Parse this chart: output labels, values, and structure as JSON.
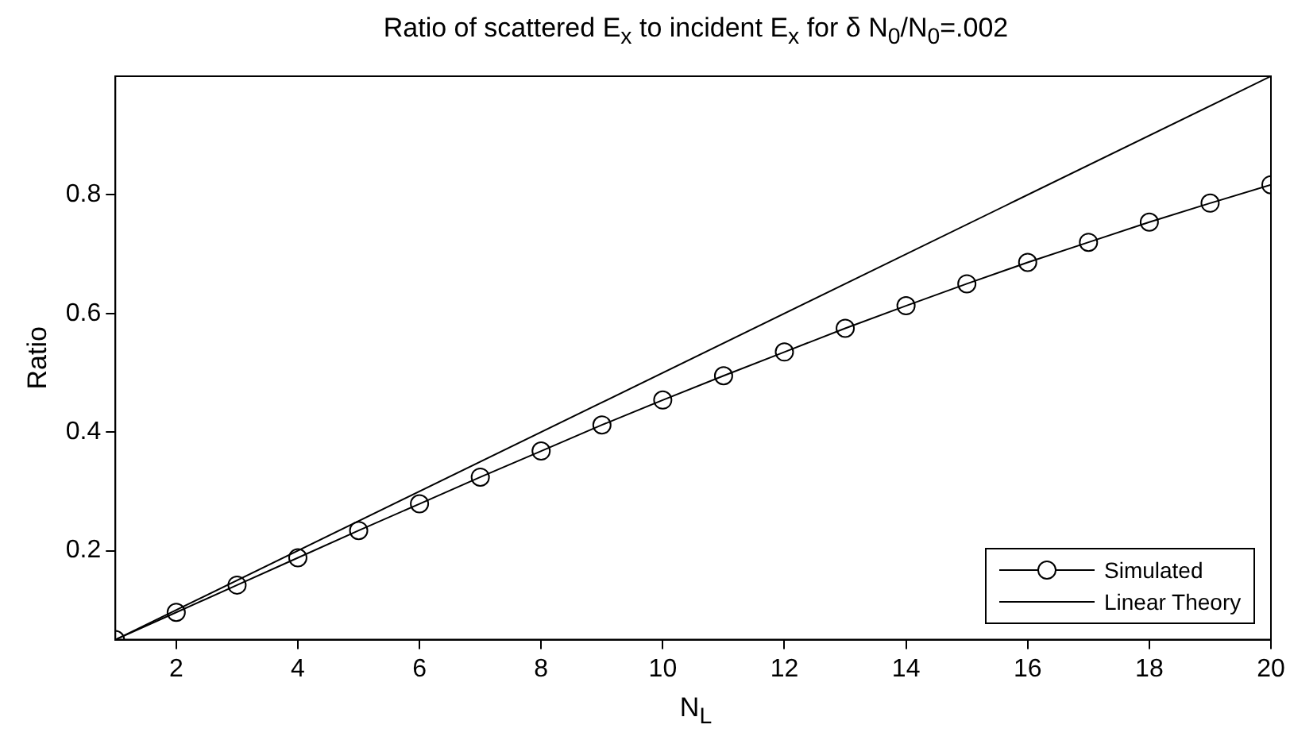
{
  "chart_data": {
    "type": "line",
    "title": "Ratio of scattered E$_{x}$ to incident E$_{x}$ for δ N$_{0}$/N$_{0}$=.002",
    "xlabel": "N$_{L}$",
    "ylabel": "Ratio",
    "xlim": [
      1,
      20
    ],
    "xticks": [
      2,
      4,
      6,
      8,
      10,
      12,
      14,
      16,
      18,
      20
    ],
    "ylim": [
      0.05,
      1.0
    ],
    "yticks": [
      0.2,
      0.4,
      0.6,
      0.8
    ],
    "grid": false,
    "legend": "bottom right",
    "line_style": "solid",
    "series": [
      {
        "name": "Simulated",
        "color": "#000000",
        "marker": "circle",
        "x": [
          1,
          2,
          3,
          4,
          5,
          6,
          7,
          8,
          9,
          10,
          11,
          12,
          13,
          14,
          15,
          16,
          17,
          18,
          19,
          20
        ],
        "values": [
          0.05,
          0.096,
          0.142,
          0.188,
          0.234,
          0.279,
          0.324,
          0.368,
          0.412,
          0.454,
          0.495,
          0.535,
          0.575,
          0.613,
          0.65,
          0.686,
          0.72,
          0.754,
          0.786,
          0.817
        ]
      },
      {
        "name": "Linear Theory",
        "color": "#000000",
        "marker": "none",
        "x": [
          1,
          20
        ],
        "values": [
          0.05,
          1.0
        ]
      }
    ]
  }
}
